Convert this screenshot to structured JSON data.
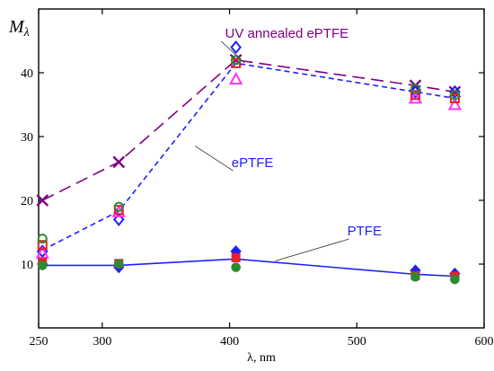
{
  "chart_data": {
    "type": "scatter",
    "xlabel": "λ, nm",
    "ylabel": {
      "main": "M",
      "sub": "λ"
    },
    "xlim": [
      250,
      600
    ],
    "ylim": [
      0,
      50
    ],
    "xticks": [
      "250",
      "300",
      "400",
      "500",
      "600"
    ],
    "yticks": [
      "10",
      "20",
      "30",
      "40"
    ],
    "grid": false,
    "lines": [
      {
        "label": "UV annealed ePTFE",
        "color": "#800080",
        "dash": "long",
        "x": [
          253,
          313,
          405,
          546,
          577
        ],
        "y": [
          20,
          26,
          42,
          38,
          37
        ]
      },
      {
        "label": "ePTFE",
        "color": "#1f1fff",
        "dash": "short",
        "x": [
          253,
          313,
          405,
          546,
          577
        ],
        "y": [
          12.2,
          18.3,
          41.5,
          37,
          36
        ]
      },
      {
        "label": "PTFE",
        "color": "#1f1fff",
        "dash": "solid",
        "x": [
          253,
          313,
          405,
          546,
          577
        ],
        "y": [
          9.8,
          9.8,
          10.8,
          8.4,
          8.1
        ]
      }
    ],
    "markers": [
      {
        "shape": "x",
        "color": "#800080",
        "x": [
          253,
          313,
          405,
          546,
          577
        ],
        "y": [
          20,
          26,
          42,
          38,
          37
        ]
      },
      {
        "shape": "open-diamond",
        "color": "#1f1fff",
        "x": [
          253,
          313,
          405,
          546,
          577
        ],
        "y": [
          12,
          17,
          44,
          37,
          37
        ]
      },
      {
        "shape": "open-triangle",
        "color": "#ff33ff",
        "x": [
          253,
          313,
          405,
          546,
          577
        ],
        "y": [
          11.7,
          18.2,
          39,
          36,
          35
        ]
      },
      {
        "shape": "open-square",
        "color": "#e8202a",
        "x": [
          253,
          313,
          405,
          546,
          577
        ],
        "y": [
          13,
          18.5,
          41.5,
          36.5,
          36
        ]
      },
      {
        "shape": "open-circle",
        "color": "#2d8b2d",
        "x": [
          253,
          313,
          405,
          546,
          577
        ],
        "y": [
          14,
          19,
          42,
          37.5,
          36.5
        ]
      },
      {
        "shape": "filled-diamond",
        "color": "#1f1fff",
        "x": [
          253,
          313,
          405,
          546,
          577
        ],
        "y": [
          10,
          9.5,
          12,
          9,
          8.5
        ]
      },
      {
        "shape": "filled-square",
        "color": "#e8202a",
        "x": [
          253,
          313,
          405,
          546,
          577
        ],
        "y": [
          10.3,
          10.1,
          11,
          8.2,
          8.1
        ]
      },
      {
        "shape": "filled-circle",
        "color": "#2d8b2d",
        "x": [
          253,
          313,
          405,
          546,
          577
        ],
        "y": [
          9.8,
          10,
          9.5,
          8,
          7.6
        ]
      }
    ],
    "annotations": [
      {
        "text": "UV annealed ePTFE",
        "color": "#800080",
        "x": 445,
        "y": 45.5,
        "point_x": 412,
        "point_y": 41.5
      },
      {
        "text": "ePTFE",
        "color": "#1f1fff",
        "x": 418,
        "y": 25.2,
        "point_x": 373,
        "point_y": 28.5
      },
      {
        "text": "PTFE",
        "color": "#1f1fff",
        "x": 506,
        "y": 14.5,
        "point_x": 436,
        "point_y": 10.5
      }
    ]
  }
}
